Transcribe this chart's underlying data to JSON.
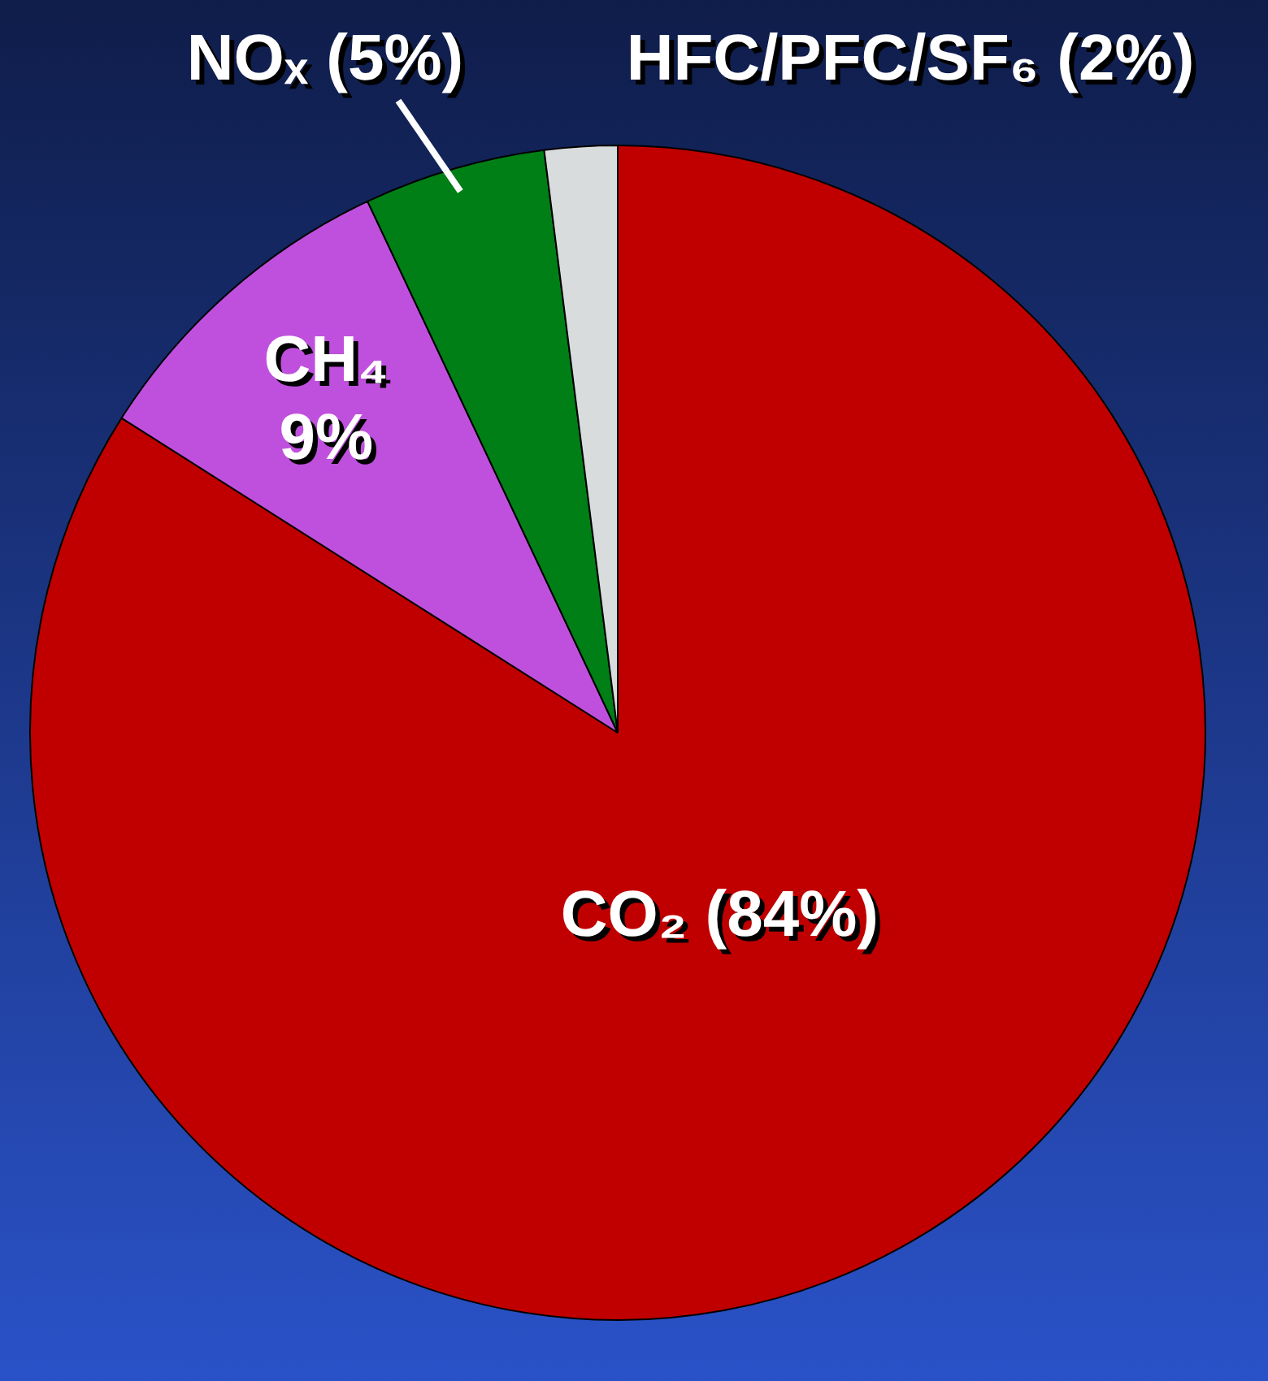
{
  "chart_data": {
    "type": "pie",
    "categories": [
      "CO₂",
      "CH₄",
      "NOₓ",
      "HFC/PFC/SF₆"
    ],
    "values": [
      84,
      9,
      5,
      2
    ],
    "colors": [
      "#c00000",
      "#bf50dd",
      "#007f16",
      "#d9dcdc"
    ],
    "value_labels": [
      "(84%)",
      "9%",
      "(5%)",
      "(2%)"
    ],
    "legend": false
  }
}
